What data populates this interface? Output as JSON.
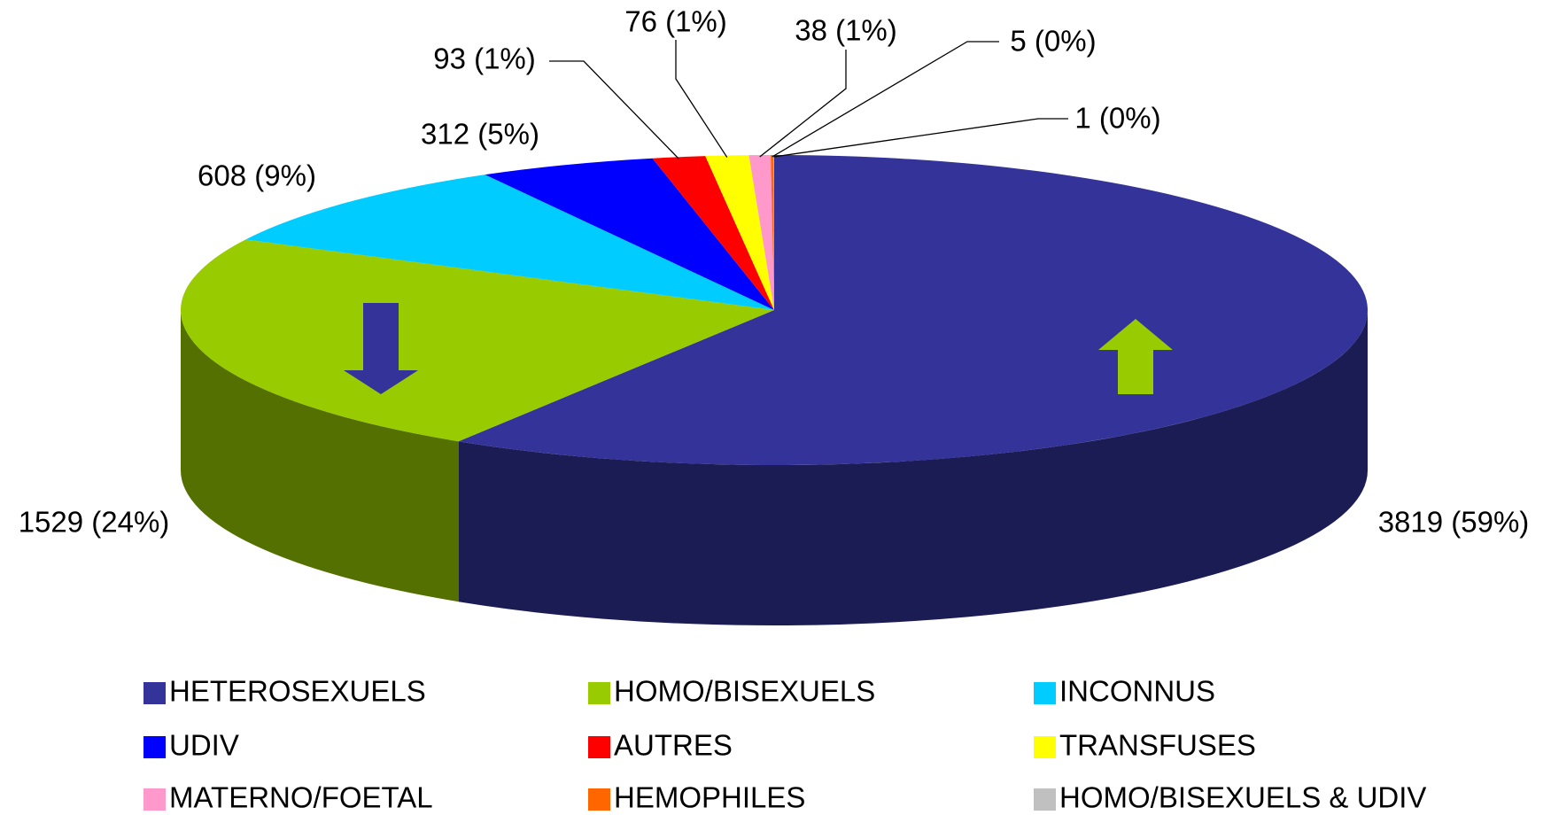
{
  "chart_data": {
    "type": "pie3d",
    "categories": [
      "HETEROSEXUELS",
      "HOMO/BISEXUELS",
      "INCONNUS",
      "UDIV",
      "AUTRES",
      "TRANSFUSES",
      "MATERNO/FOETAL",
      "HEMOPHILES",
      "HOMO/BISEXUELS & UDIV"
    ],
    "values": [
      3819,
      1529,
      608,
      312,
      93,
      76,
      38,
      5,
      1
    ],
    "value_labels": [
      "3819 (59%)",
      "1529 (24%)",
      "608 (9%)",
      "312 (5%)",
      "93 (1%)",
      "76 (1%)",
      "38 (1%)",
      "5 (0%)",
      "1 (0%)"
    ],
    "colors": [
      "#333399",
      "#99cc00",
      "#00ccff",
      "#0000ff",
      "#ff0000",
      "#ffff00",
      "#ff99cc",
      "#ff6600",
      "#c0c0c0"
    ],
    "legend": "bottom"
  }
}
